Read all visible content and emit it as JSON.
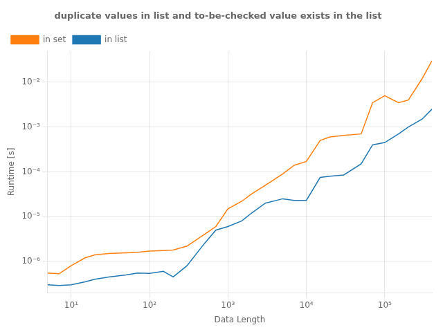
{
  "chart_data": {
    "type": "line",
    "title": "duplicate values in list and to-be-checked value exists in the list",
    "x_label": "Data Length",
    "y_label": "Runtime [s]",
    "log": true,
    "grid": true,
    "legend": "upper left",
    "x": [
      5,
      7,
      10,
      15,
      20,
      30,
      50,
      70,
      100,
      150,
      200,
      300,
      500,
      700,
      1000,
      1500,
      2000,
      3000,
      5000,
      7000,
      10000,
      15000,
      20000,
      30000,
      50000,
      70000,
      100000,
      150000,
      200000,
      300000,
      400000
    ],
    "series": [
      {
        "name": "in set",
        "color": "#ff7f0e",
        "values": [
          5.5e-07,
          5.3e-07,
          8e-07,
          1.2e-06,
          1.4e-06,
          1.5e-06,
          1.55e-06,
          1.6e-06,
          1.7e-06,
          1.75e-06,
          1.8e-06,
          2.2e-06,
          4e-06,
          6e-06,
          1.5e-05,
          2.2e-05,
          3.2e-05,
          5e-05,
          9e-05,
          0.00014,
          0.00017,
          0.0005,
          0.0006,
          0.00065,
          0.0007,
          0.0035,
          0.005,
          0.0035,
          0.004,
          0.012,
          0.03
        ]
      },
      {
        "name": "in list",
        "color": "#1f77b4",
        "values": [
          3e-07,
          2.9e-07,
          3e-07,
          3.5e-07,
          4e-07,
          4.5e-07,
          5e-07,
          5.5e-07,
          5.4e-07,
          6e-07,
          4.5e-07,
          8e-07,
          2.5e-06,
          5e-06,
          6e-06,
          8e-06,
          1.2e-05,
          2e-05,
          2.5e-05,
          2.3e-05,
          2.3e-05,
          7.5e-05,
          8e-05,
          8.5e-05,
          0.00015,
          0.0004,
          0.00045,
          0.0007,
          0.001,
          0.0015,
          0.0025
        ]
      }
    ],
    "xlim": [
      5,
      400000
    ],
    "ylim": [
      2e-07,
      0.05
    ],
    "xticks": [
      {
        "value": 10,
        "label": "10¹"
      },
      {
        "value": 100,
        "label": "10²"
      },
      {
        "value": 1000,
        "label": "10³"
      },
      {
        "value": 10000,
        "label": "10⁴"
      },
      {
        "value": 100000,
        "label": "10⁵"
      }
    ],
    "yticks": [
      {
        "value": 1e-06,
        "label": "10⁻⁶"
      },
      {
        "value": 1e-05,
        "label": "10⁻⁵"
      },
      {
        "value": 0.0001,
        "label": "10⁻⁴"
      },
      {
        "value": 0.001,
        "label": "10⁻³"
      },
      {
        "value": 0.01,
        "label": "10⁻²"
      }
    ]
  }
}
